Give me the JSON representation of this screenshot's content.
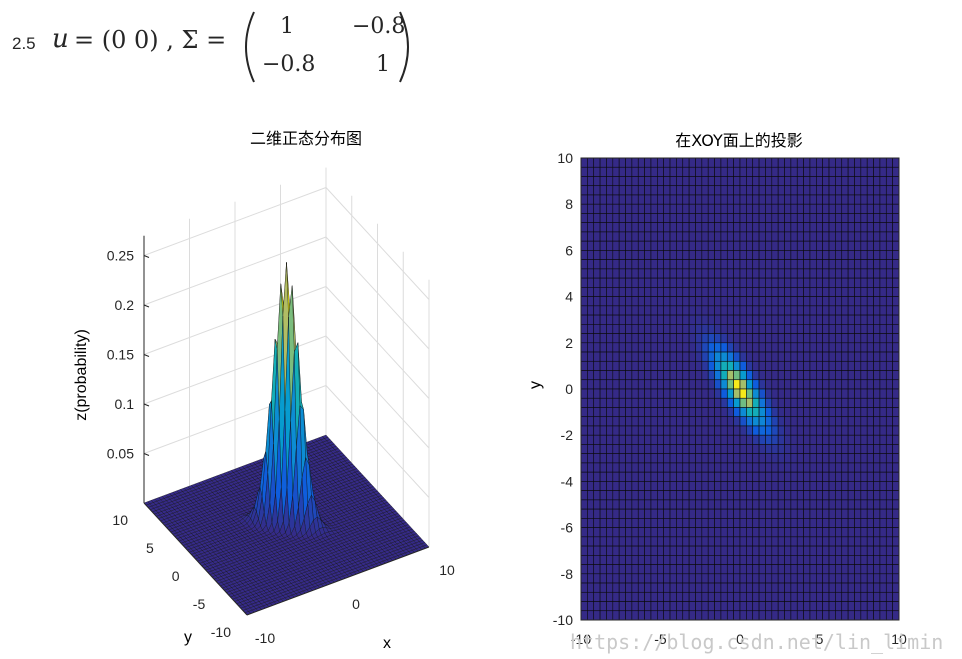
{
  "formula": {
    "number": "2.5",
    "u_lhs": "u",
    "u_rhs": "= (0 0) , Σ =",
    "sigma": [
      "1",
      "−0.8",
      "−0.8",
      "1"
    ]
  },
  "watermark": "https://blog.csdn.net/lin_limin",
  "chart_data": [
    {
      "type": "surface3d",
      "title": "二维正态分布图",
      "xlabel": "x",
      "ylabel": "y",
      "zlabel": "z(probability)",
      "x_ticks": [
        "-10",
        "0",
        "10"
      ],
      "y_ticks": [
        "-10",
        "-5",
        "0",
        "5",
        "10"
      ],
      "z_ticks": [
        "0.05",
        "0.1",
        "0.15",
        "0.2",
        "0.25"
      ],
      "xlim": [
        -10,
        10
      ],
      "ylim": [
        -10,
        10
      ],
      "zlim": [
        0,
        0.27
      ],
      "mean": [
        0,
        0
      ],
      "covariance": [
        [
          1,
          -0.8
        ],
        [
          -0.8,
          1
        ]
      ],
      "peak_value": 0.265,
      "grid": true,
      "colormap": "parula"
    },
    {
      "type": "heatmap",
      "title": "在XOY面上的投影",
      "xlabel": "",
      "ylabel": "y",
      "x_ticks": [
        "-10",
        "-5",
        "0",
        "5",
        "10"
      ],
      "y_ticks": [
        "-10",
        "-8",
        "-6",
        "-4",
        "-2",
        "0",
        "2",
        "4",
        "6",
        "8",
        "10"
      ],
      "xlim": [
        -10,
        10
      ],
      "ylim": [
        -10,
        10
      ],
      "mean": [
        0,
        0
      ],
      "covariance": [
        [
          1,
          -0.8
        ],
        [
          -0.8,
          1
        ]
      ],
      "grid_cells": 50,
      "colormap": "parula"
    }
  ],
  "colors": {
    "background": "#ffffff",
    "axis": "#262626",
    "gridline": "#dcdcdc",
    "low": "#352a87",
    "high": "#f9fb0e",
    "watermark": "#c9c9c9"
  }
}
